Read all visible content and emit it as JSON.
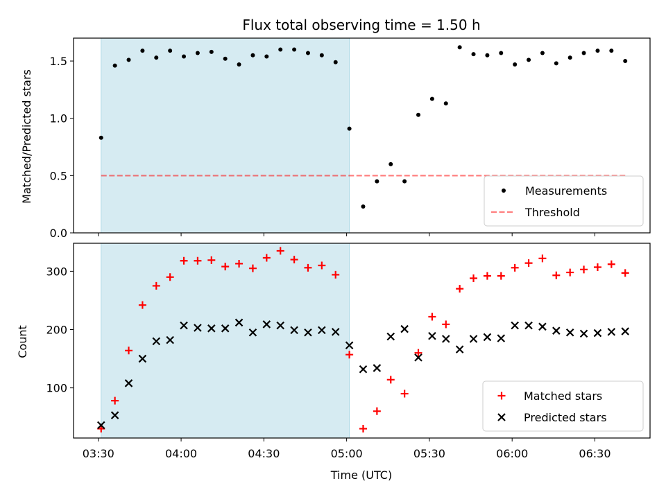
{
  "title": "Flux total observing time = 1.50 h",
  "colors": {
    "shade": "#add8e6",
    "threshold": "#ff0000",
    "measurements": "#000000",
    "matched": "#ff0000",
    "predicted": "#000000"
  },
  "chart_data": [
    {
      "type": "scatter",
      "ylabel": "Matched/Predicted stars",
      "ylim": [
        0,
        1.7
      ],
      "yticks": [
        0.0,
        0.5,
        1.0,
        1.5
      ],
      "ytick_labels": [
        "0.0",
        "0.5",
        "1.0",
        "1.5"
      ],
      "xlim": [
        "03:21",
        "06:50"
      ],
      "shaded_interval": [
        "03:31",
        "05:01"
      ],
      "legend_position": "lower-right",
      "legend": [
        "Measurements",
        "Threshold"
      ],
      "threshold": {
        "name": "Threshold",
        "y": 0.5,
        "x_range": [
          "03:31",
          "06:41"
        ],
        "style": "dashed"
      },
      "series": [
        {
          "name": "Measurements",
          "marker": "dot",
          "x": [
            "03:31",
            "03:36",
            "03:41",
            "03:46",
            "03:51",
            "03:56",
            "04:01",
            "04:06",
            "04:11",
            "04:16",
            "04:21",
            "04:26",
            "04:31",
            "04:36",
            "04:41",
            "04:46",
            "04:51",
            "04:56",
            "05:01",
            "05:06",
            "05:11",
            "05:16",
            "05:21",
            "05:26",
            "05:31",
            "05:36",
            "05:41",
            "05:46",
            "05:51",
            "05:56",
            "06:01",
            "06:06",
            "06:11",
            "06:16",
            "06:21",
            "06:26",
            "06:31",
            "06:36",
            "06:41"
          ],
          "y": [
            0.83,
            1.46,
            1.51,
            1.59,
            1.53,
            1.59,
            1.54,
            1.57,
            1.58,
            1.52,
            1.47,
            1.55,
            1.54,
            1.6,
            1.6,
            1.57,
            1.55,
            1.49,
            0.91,
            0.23,
            0.45,
            0.6,
            0.45,
            1.03,
            1.17,
            1.13,
            1.62,
            1.56,
            1.55,
            1.57,
            1.47,
            1.51,
            1.57,
            1.48,
            1.53,
            1.57,
            1.59,
            1.59,
            1.5
          ]
        }
      ]
    },
    {
      "type": "scatter",
      "ylabel": "Count",
      "xlabel": "Time (UTC)",
      "ylim": [
        14,
        348
      ],
      "yticks": [
        100,
        200,
        300
      ],
      "ytick_labels": [
        "100",
        "200",
        "300"
      ],
      "xlim": [
        "03:21",
        "06:50"
      ],
      "xticks": [
        "03:30",
        "04:00",
        "04:30",
        "05:00",
        "05:30",
        "06:00",
        "06:30"
      ],
      "xtick_labels": [
        "03:30",
        "04:00",
        "04:30",
        "05:00",
        "05:30",
        "06:00",
        "06:30"
      ],
      "shaded_interval": [
        "03:31",
        "05:01"
      ],
      "legend_position": "lower-right",
      "legend": [
        "Matched stars",
        "Predicted stars"
      ],
      "series": [
        {
          "name": "Matched stars",
          "marker": "plus",
          "x": [
            "03:31",
            "03:36",
            "03:41",
            "03:46",
            "03:51",
            "03:56",
            "04:01",
            "04:06",
            "04:11",
            "04:16",
            "04:21",
            "04:26",
            "04:31",
            "04:36",
            "04:41",
            "04:46",
            "04:51",
            "04:56",
            "05:01",
            "05:06",
            "05:11",
            "05:16",
            "05:21",
            "05:26",
            "05:31",
            "05:36",
            "05:41",
            "05:46",
            "05:51",
            "05:56",
            "06:01",
            "06:06",
            "06:11",
            "06:16",
            "06:21",
            "06:26",
            "06:31",
            "06:36",
            "06:41"
          ],
          "y": [
            30,
            78,
            164,
            242,
            275,
            290,
            318,
            318,
            319,
            308,
            313,
            305,
            323,
            335,
            320,
            306,
            310,
            294,
            157,
            30,
            60,
            114,
            90,
            160,
            222,
            209,
            270,
            288,
            292,
            292,
            306,
            314,
            322,
            293,
            298,
            303,
            307,
            312,
            297
          ]
        },
        {
          "name": "Predicted stars",
          "marker": "x",
          "x": [
            "03:31",
            "03:36",
            "03:41",
            "03:46",
            "03:51",
            "03:56",
            "04:01",
            "04:06",
            "04:11",
            "04:16",
            "04:21",
            "04:26",
            "04:31",
            "04:36",
            "04:41",
            "04:46",
            "04:51",
            "04:56",
            "05:01",
            "05:06",
            "05:11",
            "05:16",
            "05:21",
            "05:26",
            "05:31",
            "05:36",
            "05:41",
            "05:46",
            "05:51",
            "05:56",
            "06:01",
            "06:06",
            "06:11",
            "06:16",
            "06:21",
            "06:26",
            "06:31",
            "06:36",
            "06:41"
          ],
          "y": [
            36,
            53,
            108,
            150,
            180,
            182,
            207,
            203,
            202,
            202,
            212,
            195,
            209,
            207,
            199,
            195,
            199,
            196,
            173,
            132,
            134,
            188,
            201,
            152,
            189,
            184,
            166,
            184,
            187,
            185,
            207,
            207,
            205,
            198,
            195,
            193,
            194,
            196,
            197
          ]
        }
      ]
    }
  ]
}
